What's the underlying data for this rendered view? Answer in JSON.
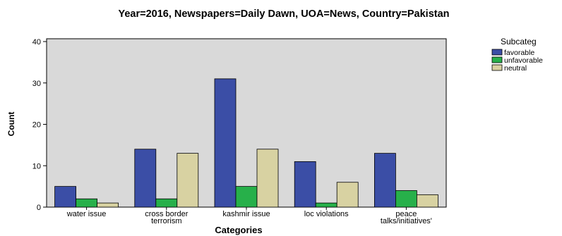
{
  "chart_data": {
    "type": "bar",
    "title": "Year=2016, Newspapers=Daily Dawn, UOA=News, Country=Pakistan",
    "xlabel": "Categories",
    "ylabel": "Count",
    "ylim": [
      0,
      40
    ],
    "yticks": [
      "0",
      "10",
      "20",
      "30",
      "40"
    ],
    "categories": [
      [
        "water issue"
      ],
      [
        "cross border",
        "terrorism"
      ],
      [
        "kashmir issue"
      ],
      [
        "loc violations"
      ],
      [
        "peace",
        "talks/initiatives'"
      ]
    ],
    "series": [
      {
        "name": "favorable",
        "color": "#3b4ea6",
        "values": [
          5,
          14,
          31,
          11,
          13
        ]
      },
      {
        "name": "unfavorable",
        "color": "#27b04a",
        "values": [
          2,
          2,
          5,
          1,
          4
        ]
      },
      {
        "name": "neutral",
        "color": "#d8d2a2",
        "values": [
          1,
          13,
          14,
          6,
          3
        ]
      }
    ],
    "legend_title": "Subcateg",
    "legend_position": "top-right",
    "grid": false,
    "plot_background": "#d9d9d9"
  }
}
